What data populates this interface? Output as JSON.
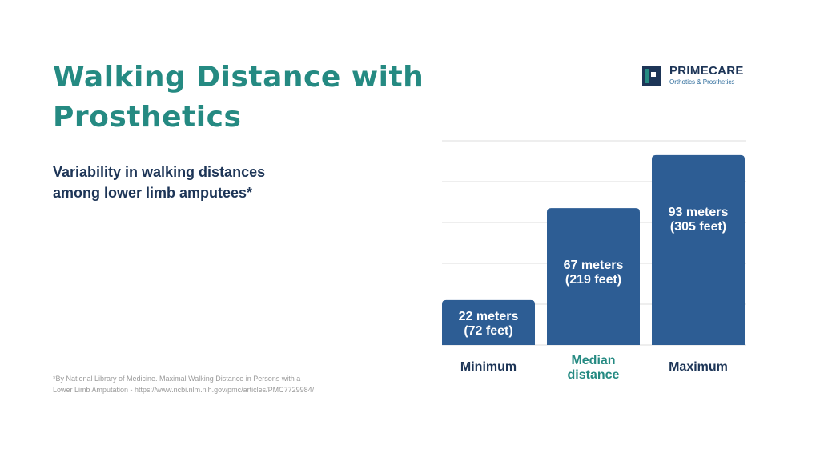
{
  "title": {
    "line1": "Walking Distance with",
    "line2": "Prosthetics"
  },
  "subtitle": {
    "line1": "Variability in walking distances",
    "line2": "among lower limb amputees*"
  },
  "footnote": {
    "line1": "*By National Library of Medicine. Maximal Walking Distance in Persons with a",
    "line2": "Lower Limb Amputation - https://www.ncbi.nlm.nih.gov/pmc/articles/PMC7729984/"
  },
  "logo": {
    "icon": "primecare-logo-icon",
    "name": "PRIMECARE",
    "tagline": "Orthotics & Prosthetics"
  },
  "colors": {
    "title": "#258a82",
    "subtitle": "#1d3557",
    "bar": "#2d5d94",
    "highlight_category": "#258a82",
    "category_default": "#1d3557",
    "grid": "#dcdcdc"
  },
  "chart_data": {
    "type": "bar",
    "categories": [
      [
        "Minimum"
      ],
      [
        "Median",
        "distance"
      ],
      [
        "Maximum"
      ]
    ],
    "highlighted_category_index": 1,
    "values": [
      22,
      67,
      93
    ],
    "data_labels": [
      [
        "22 meters",
        "(72 feet)"
      ],
      [
        "67 meters",
        "(219 feet)"
      ],
      [
        "93 meters",
        "(305 feet)"
      ]
    ],
    "title": "",
    "xlabel": "",
    "ylabel": "",
    "ylim": [
      0,
      100
    ],
    "gridlines": [
      0,
      20,
      40,
      60,
      80,
      100
    ],
    "grid": true,
    "y_axis_labels_shown": false
  }
}
